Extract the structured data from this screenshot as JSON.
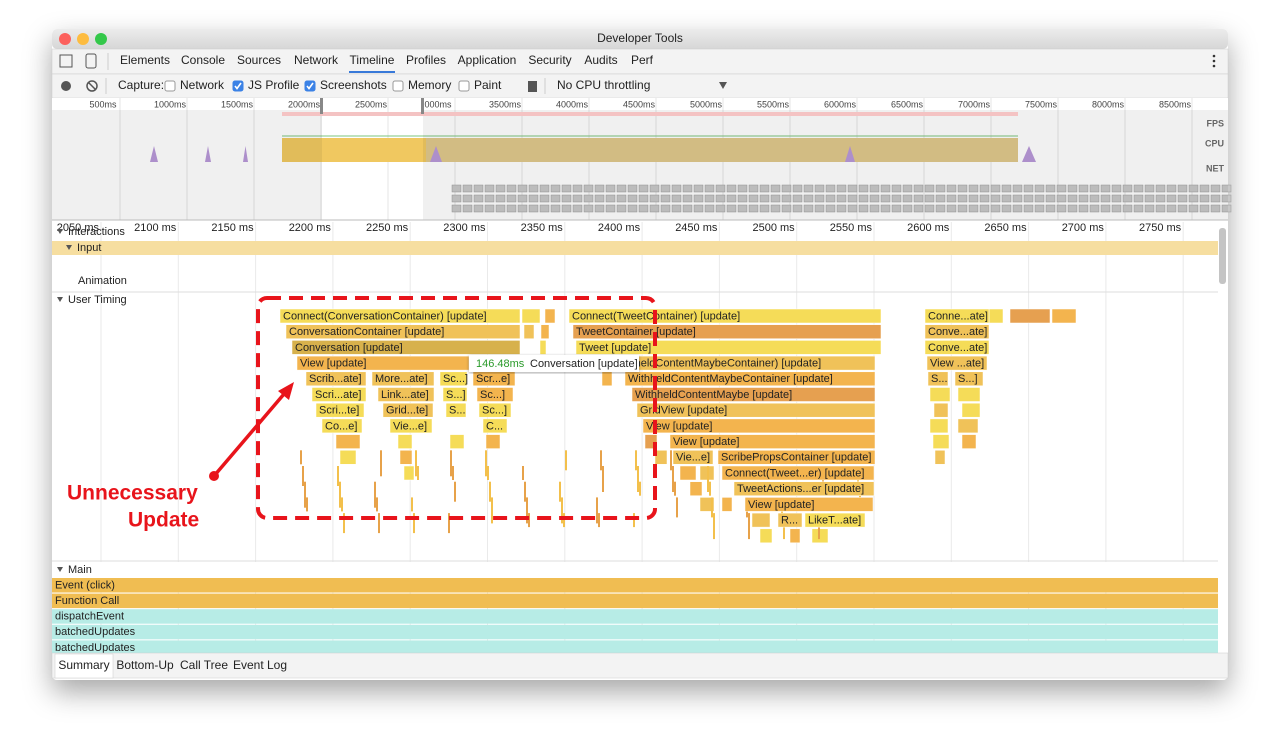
{
  "window": {
    "title": "Developer Tools"
  },
  "tabs": [
    {
      "label": "Elements"
    },
    {
      "label": "Console"
    },
    {
      "label": "Sources"
    },
    {
      "label": "Network"
    },
    {
      "label": "Timeline",
      "selected": true
    },
    {
      "label": "Profiles"
    },
    {
      "label": "Application"
    },
    {
      "label": "Security"
    },
    {
      "label": "Audits"
    },
    {
      "label": "Perf"
    }
  ],
  "toolbar": {
    "capture": "Capture:",
    "checkboxes": [
      {
        "label": "Network",
        "checked": false
      },
      {
        "label": "JS Profile",
        "checked": true
      },
      {
        "label": "Screenshots",
        "checked": true
      },
      {
        "label": "Memory",
        "checked": false
      },
      {
        "label": "Paint",
        "checked": false
      }
    ],
    "throttling": "No CPU throttling"
  },
  "overview": {
    "ticks": [
      "500ms",
      "1000ms",
      "1500ms",
      "2000ms",
      "2500ms",
      "000ms",
      "3500ms",
      "4000ms",
      "4500ms",
      "5000ms",
      "5500ms",
      "6000ms",
      "6500ms",
      "7000ms",
      "7500ms",
      "8000ms",
      "8500ms"
    ],
    "lanes": [
      "FPS",
      "CPU",
      "NET"
    ]
  },
  "ruler": {
    "ticks": [
      "2050 ms",
      "2100 ms",
      "2150 ms",
      "2200 ms",
      "2250 ms",
      "2300 ms",
      "2350 ms",
      "2400 ms",
      "2450 ms",
      "2500 ms",
      "2550 ms",
      "2600 ms",
      "2650 ms",
      "2700 ms",
      "2750 ms"
    ]
  },
  "tracks": {
    "interactions": "Interactions",
    "input": "Input",
    "animation": "Animation",
    "user_timing": "User Timing",
    "main": "Main"
  },
  "flame": [
    "Connect(ConversationContainer) [update]",
    "Connect(TweetContainer) [update]",
    "Conne...ate]",
    "ConversationContainer [update]",
    "TweetContainer [update]",
    "Conve...ate]",
    "Conversation [update]",
    "Tweet [update]",
    "Conve...ate]",
    "View [update]",
    "ithheldContentMaybeContainer) [update]",
    "View ...ate]",
    "Scrib...ate]",
    "More...ate]",
    "Sc...]",
    "Scr...e]",
    "WithheldContentMaybeContainer [update]",
    "S...",
    "S...]",
    "Scri...ate]",
    "Link...ate]",
    "S...]",
    "Sc...]",
    "WithheldContentMaybe [update]",
    "Scri...te]",
    "Grid...te]",
    "S...",
    "Sc...]",
    "GridView [update]",
    "Co...e]",
    "Vie...e]",
    "C...",
    "View [update]",
    "View [update]",
    "Vie...e]",
    "ScribePropsContainer [update]",
    "Connect(Tweet...er) [update]",
    "TweetActions...er [update]",
    "View [update]",
    "R...",
    "LikeT...ate]"
  ],
  "tooltip": {
    "duration": "146.48ms",
    "name": "Conversation [update]"
  },
  "annotation": [
    "Unnecessary",
    "Update"
  ],
  "main_rows": [
    "Event (click)",
    "Function Call",
    "dispatchEvent",
    "batchedUpdates",
    "batchedUpdates"
  ],
  "bottom_tabs": [
    {
      "label": "Summary",
      "selected": true
    },
    {
      "label": "Bottom-Up"
    },
    {
      "label": "Call Tree"
    },
    {
      "label": "Event Log"
    }
  ]
}
